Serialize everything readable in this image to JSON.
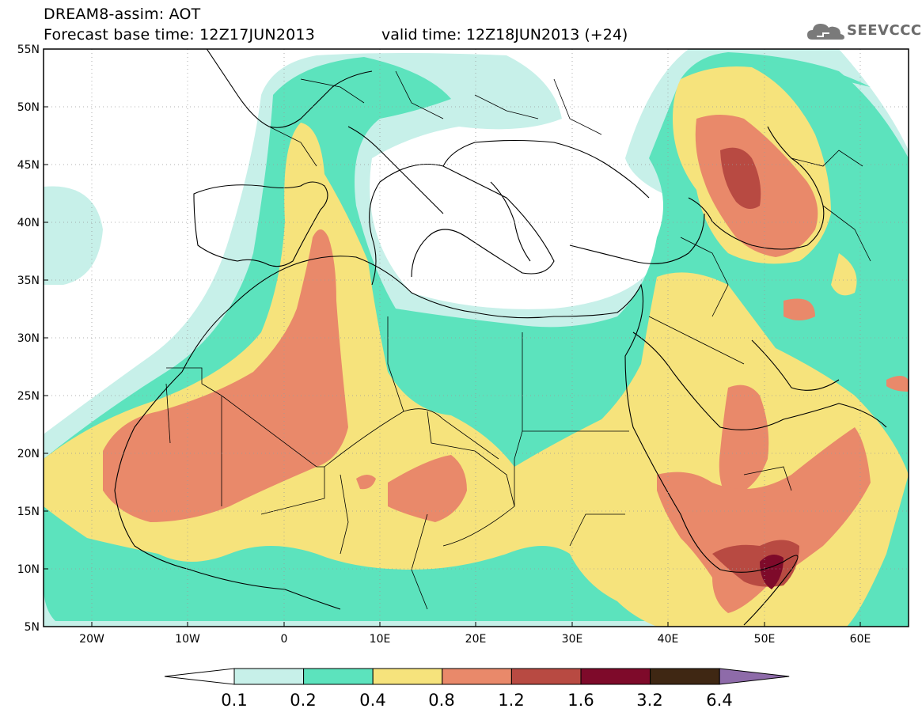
{
  "header": {
    "title": "DREAM8-assim: AOT",
    "base_time": "Forecast base time: 12Z17JUN2013",
    "valid_time": "valid time: 12Z18JUN2013 (+24)",
    "logo_text": "SEEVCCC"
  },
  "map": {
    "lon_range": [
      -25,
      65
    ],
    "lat_range": [
      5,
      55
    ],
    "lat_labels": [
      "55N",
      "50N",
      "45N",
      "40N",
      "35N",
      "30N",
      "25N",
      "20N",
      "15N",
      "10N",
      "5N"
    ],
    "lon_labels": [
      "20W",
      "10W",
      "0",
      "10E",
      "20E",
      "30E",
      "40E",
      "50E",
      "60E"
    ],
    "grid": "dotted"
  },
  "colorbar": {
    "labels": [
      "0.1",
      "0.2",
      "0.4",
      "0.8",
      "1.2",
      "1.6",
      "3.2",
      "6.4"
    ],
    "colors": [
      "#ffffff",
      "#c7f0e9",
      "#5ce3bd",
      "#f6e37c",
      "#e9896a",
      "#b84a42",
      "#7e0a2a",
      "#3f2713",
      "#8e6ba9"
    ]
  }
}
